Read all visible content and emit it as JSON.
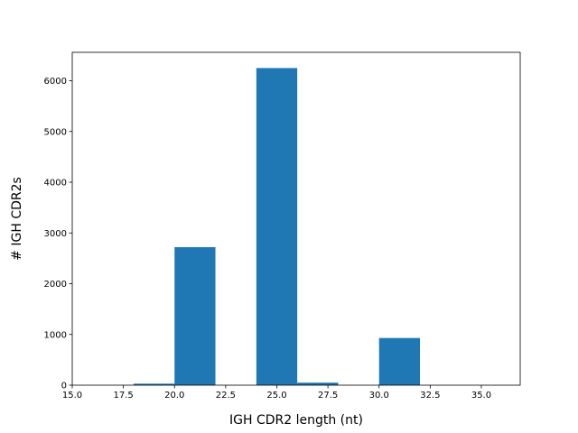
{
  "chart_data": {
    "type": "bar",
    "title": "",
    "xlabel": "IGH CDR2 length (nt)",
    "ylabel": "# IGH CDR2s",
    "xlim": [
      15.0,
      36.9
    ],
    "ylim": [
      0,
      6560
    ],
    "xticks": [
      "15.0",
      "17.5",
      "20.0",
      "22.5",
      "25.0",
      "27.5",
      "30.0",
      "32.5",
      "35.0"
    ],
    "yticks": [
      "0",
      "1000",
      "2000",
      "3000",
      "4000",
      "5000",
      "6000"
    ],
    "bins": [
      {
        "x0": 18,
        "x1": 20,
        "value": 30
      },
      {
        "x0": 20,
        "x1": 22,
        "value": 2720
      },
      {
        "x0": 22,
        "x1": 24,
        "value": 0
      },
      {
        "x0": 24,
        "x1": 26,
        "value": 6250
      },
      {
        "x0": 26,
        "x1": 28,
        "value": 50
      },
      {
        "x0": 28,
        "x1": 30,
        "value": 0
      },
      {
        "x0": 30,
        "x1": 32,
        "value": 930
      },
      {
        "x0": 32,
        "x1": 34,
        "value": 0
      },
      {
        "x0": 34,
        "x1": 36,
        "value": 0
      }
    ],
    "grid": false,
    "colors": {
      "bar": "#1f77b4",
      "axis": "#000000"
    }
  }
}
